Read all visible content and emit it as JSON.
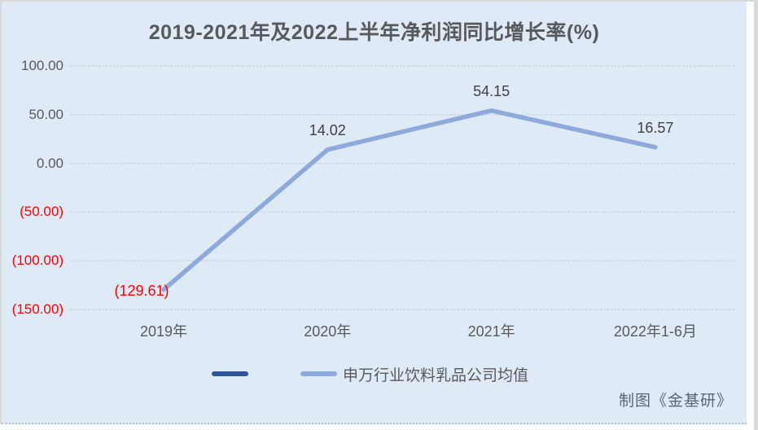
{
  "page": {
    "credit": "制图《金基研》"
  },
  "style": {
    "background": "#deebf7",
    "page_edge": "#d9d9d9",
    "grid_color": "#ccd2d8",
    "title_color": "#57595b",
    "label_color": "#595959",
    "data_label_color": "#404040",
    "negative_color": "#ff0000",
    "credit_color": "#5b6770",
    "accent_dark_blue": "#2f5597",
    "accent_light_blue": "#8ea9db"
  },
  "chart_data": {
    "type": "line",
    "title": "2019-2021年及2022上半年净利润同比增长率(%)",
    "xlabel": "",
    "ylabel": "",
    "categories": [
      "2019年",
      "2020年",
      "2021年",
      "2022年1-6月"
    ],
    "series": [
      {
        "name": "",
        "color": "#2f5597",
        "values": []
      },
      {
        "name": "申万行业饮料乳品公司均值",
        "color": "#8ea9db",
        "values": [
          -129.61,
          14.02,
          54.15,
          16.57
        ]
      }
    ],
    "data_labels": [
      "(129.61)",
      "14.02",
      "54.15",
      "16.57"
    ],
    "y_ticks": [
      {
        "label": "100.00",
        "value": 100
      },
      {
        "label": "50.00",
        "value": 50
      },
      {
        "label": "0.00",
        "value": 0
      },
      {
        "label": "(50.00)",
        "value": -50
      },
      {
        "label": "(100.00)",
        "value": -100
      },
      {
        "label": "(150.00)",
        "value": -150
      }
    ],
    "ylim": [
      -150,
      100
    ],
    "ytick_interval": 50,
    "grid": true,
    "legend_position": "bottom",
    "negative_format": "parentheses-red"
  }
}
